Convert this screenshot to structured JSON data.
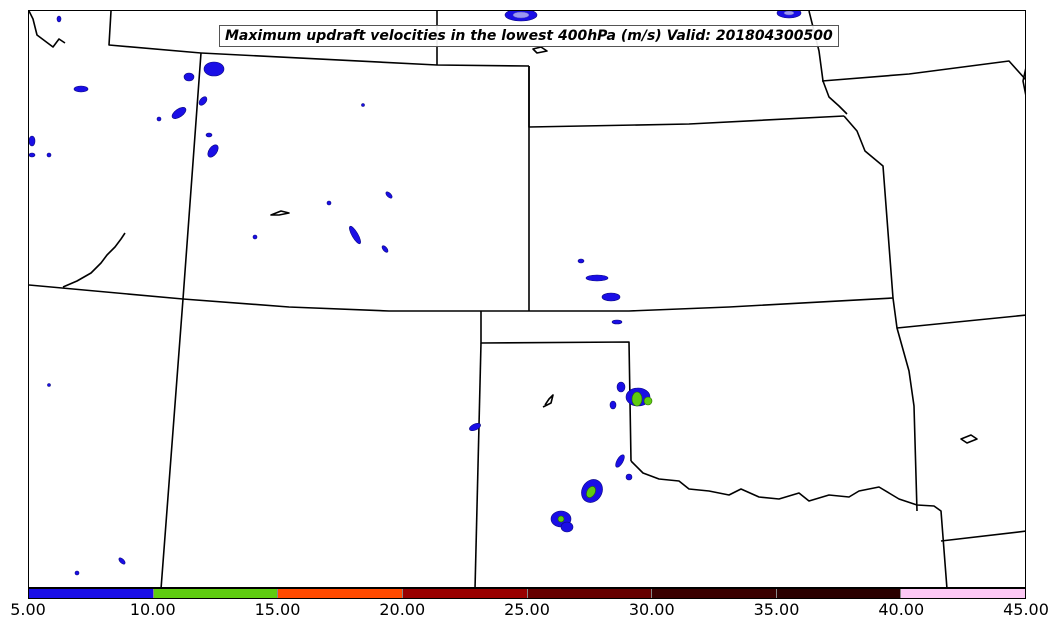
{
  "title": "Maximum updraft velocities in the lowest 400hPa (m/s) Valid: 201804300500",
  "colorbar": {
    "ticks": [
      "5.00",
      "10.00",
      "15.00",
      "20.00",
      "25.00",
      "30.00",
      "35.00",
      "40.00",
      "45.00"
    ],
    "colors": [
      "#1a0ee6",
      "#5fcc10",
      "#ff4a00",
      "#990000",
      "#660000",
      "#3a0000",
      "#2a0000",
      "#fcc8f4",
      "#fde6fb"
    ]
  },
  "legend_colors": {
    "low": "#1a0ee6",
    "mid": "#5fcc10"
  }
}
